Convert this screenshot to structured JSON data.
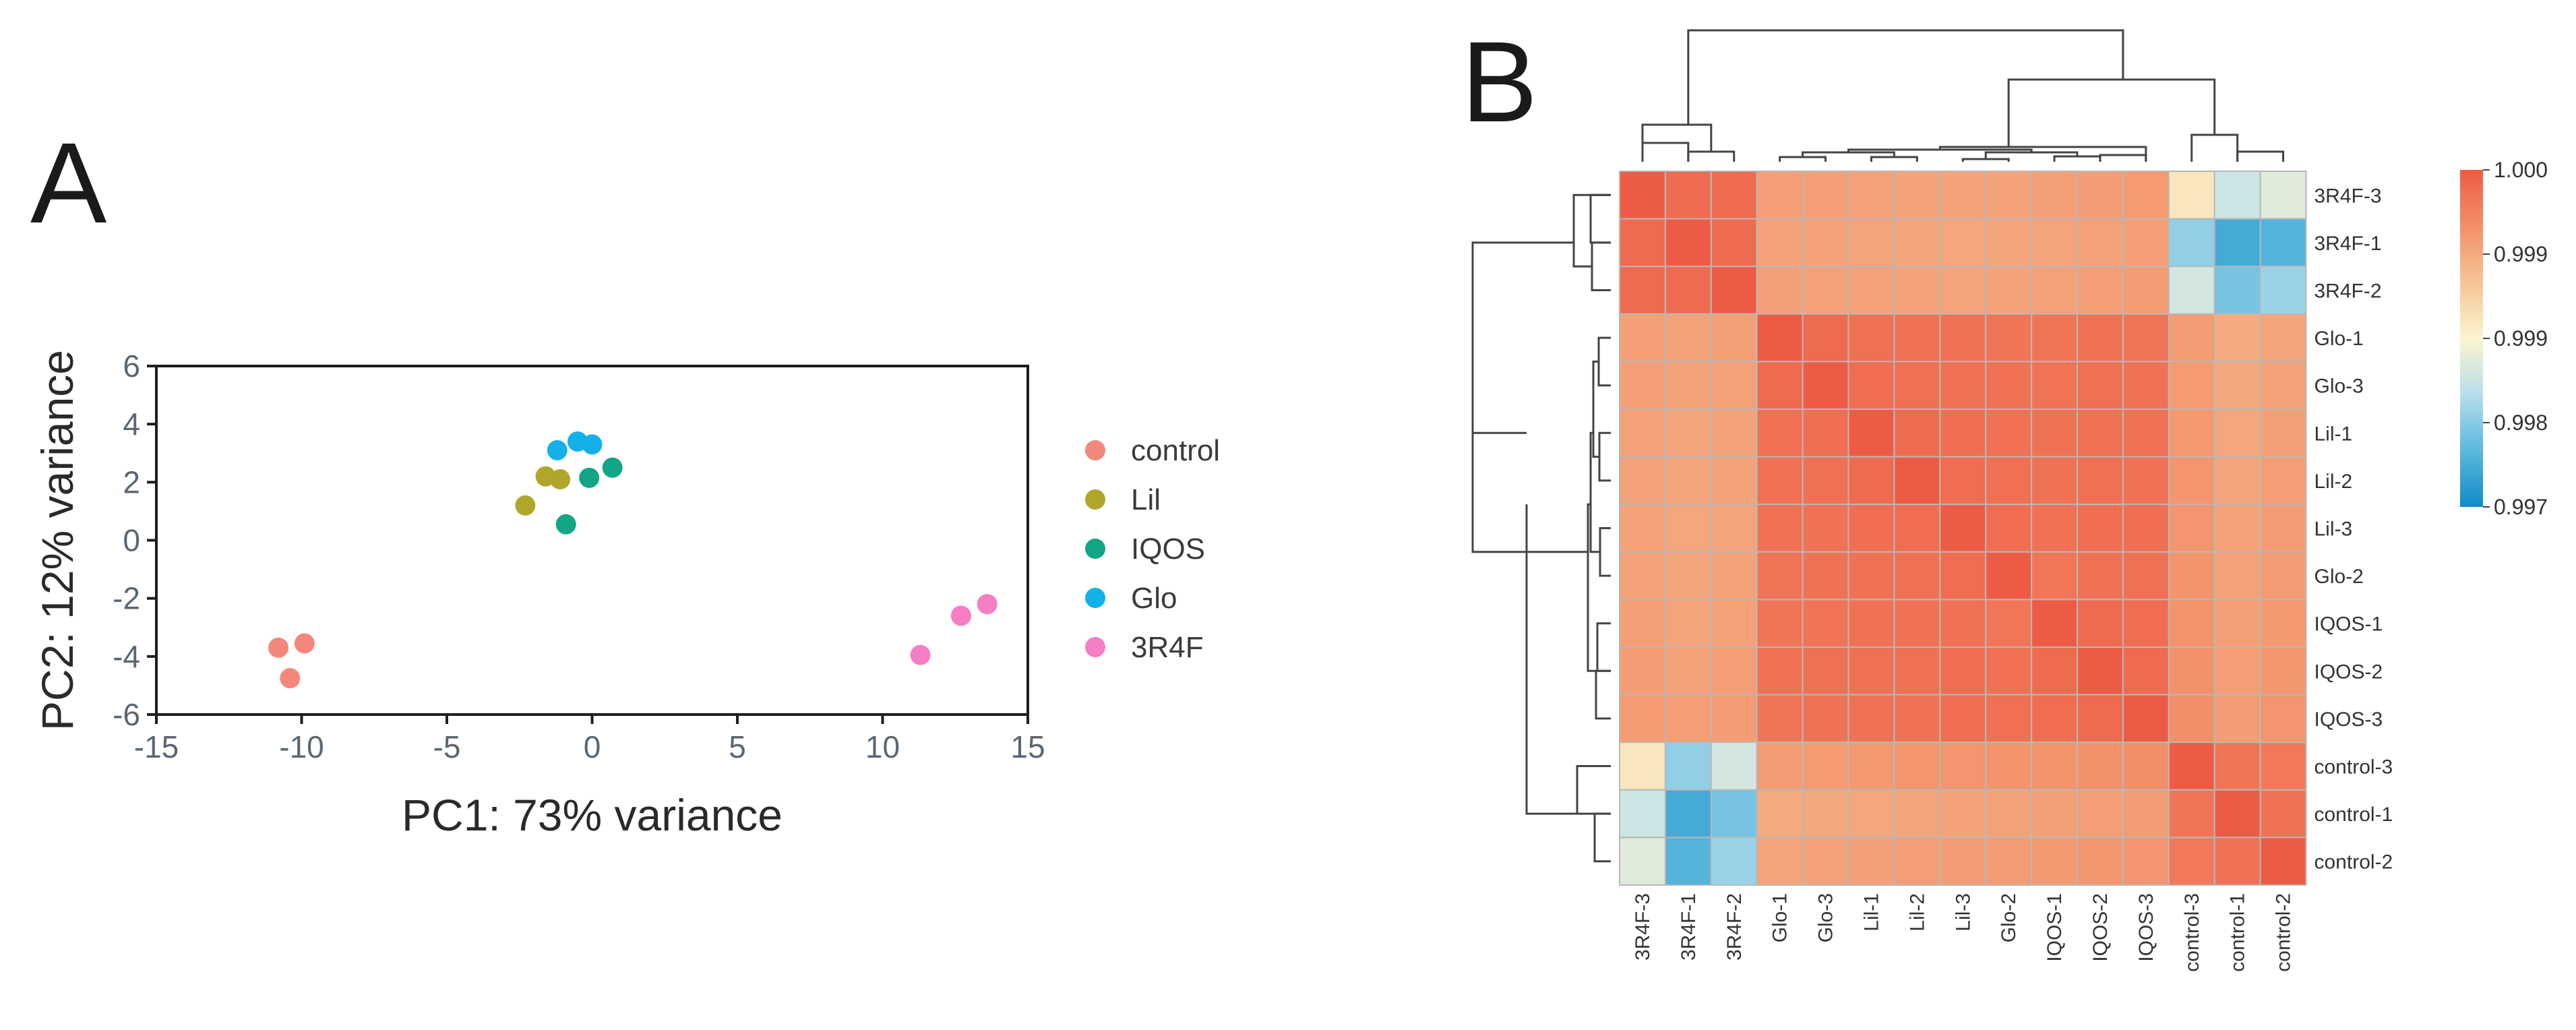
{
  "panel_labels": {
    "a": "A",
    "b": "B"
  },
  "chart_data": [
    {
      "type": "scatter",
      "panel": "A",
      "title": "",
      "xlabel": "PC1: 73% variance",
      "ylabel": "PC2: 12% variance",
      "xlim": [
        -15,
        15
      ],
      "ylim": [
        -6,
        6
      ],
      "xticks": [
        -15,
        -10,
        -5,
        0,
        5,
        10,
        15
      ],
      "yticks": [
        -6,
        -4,
        -2,
        0,
        2,
        4,
        6
      ],
      "grid": false,
      "legend_position": "right",
      "series": [
        {
          "name": "control",
          "color": "#f4877b",
          "points": [
            [
              -10.8,
              -3.7
            ],
            [
              -9.9,
              -3.55
            ],
            [
              -10.4,
              -4.75
            ]
          ]
        },
        {
          "name": "Lil",
          "color": "#b0a72a",
          "points": [
            [
              -2.3,
              1.2
            ],
            [
              -1.6,
              2.2
            ],
            [
              -1.1,
              2.1
            ]
          ]
        },
        {
          "name": "IQOS",
          "color": "#12a586",
          "points": [
            [
              -0.9,
              0.55
            ],
            [
              -0.1,
              2.15
            ],
            [
              0.7,
              2.5
            ]
          ]
        },
        {
          "name": "Glo",
          "color": "#14b0e8",
          "points": [
            [
              -1.2,
              3.1
            ],
            [
              -0.5,
              3.4
            ],
            [
              0.0,
              3.3
            ]
          ]
        },
        {
          "name": "3R4F",
          "color": "#f57ec4",
          "points": [
            [
              11.3,
              -3.95
            ],
            [
              12.7,
              -2.6
            ],
            [
              13.6,
              -2.2
            ]
          ]
        }
      ]
    },
    {
      "type": "heatmap",
      "panel": "B",
      "title": "",
      "row_labels": [
        "3R4F-3",
        "3R4F-1",
        "3R4F-2",
        "Glo-1",
        "Glo-3",
        "Lil-1",
        "Lil-2",
        "Lil-3",
        "Glo-2",
        "IQOS-1",
        "IQOS-2",
        "IQOS-3",
        "control-3",
        "control-1",
        "control-2"
      ],
      "col_labels": [
        "3R4F-3",
        "3R4F-1",
        "3R4F-2",
        "Glo-1",
        "Glo-3",
        "Lil-1",
        "Lil-2",
        "Lil-3",
        "Glo-2",
        "IQOS-1",
        "IQOS-2",
        "IQOS-3",
        "control-3",
        "control-1",
        "control-2"
      ],
      "values": [
        [
          1.0,
          0.99985,
          0.99985,
          0.99935,
          0.99935,
          0.99933,
          0.99932,
          0.99931,
          0.99932,
          0.99934,
          0.99937,
          0.99939,
          0.99865,
          0.99815,
          0.9983
        ],
        [
          0.99985,
          1.0,
          0.99985,
          0.99932,
          0.99931,
          0.9993,
          0.99929,
          0.99928,
          0.99929,
          0.9993,
          0.99933,
          0.99935,
          0.9978,
          0.99735,
          0.99745
        ],
        [
          0.99985,
          0.99985,
          1.0,
          0.99934,
          0.99933,
          0.99932,
          0.99931,
          0.9993,
          0.99931,
          0.99933,
          0.99936,
          0.99938,
          0.9982,
          0.99765,
          0.99785
        ],
        [
          0.99935,
          0.99932,
          0.99934,
          1.0,
          0.99985,
          0.9998,
          0.99979,
          0.99978,
          0.99976,
          0.99975,
          0.99978,
          0.99976,
          0.99938,
          0.99925,
          0.9993
        ],
        [
          0.99935,
          0.99931,
          0.99933,
          0.99985,
          1.0,
          0.99982,
          0.9998,
          0.99979,
          0.99978,
          0.99977,
          0.9998,
          0.99978,
          0.99939,
          0.99926,
          0.99932
        ],
        [
          0.99933,
          0.9993,
          0.99932,
          0.9998,
          0.99982,
          1.0,
          0.99985,
          0.99982,
          0.99979,
          0.99978,
          0.9998,
          0.99979,
          0.99941,
          0.99928,
          0.99934
        ],
        [
          0.99932,
          0.99929,
          0.99931,
          0.99979,
          0.9998,
          0.99985,
          1.0,
          0.99983,
          0.9998,
          0.99978,
          0.9998,
          0.99979,
          0.99943,
          0.9993,
          0.99936
        ],
        [
          0.99931,
          0.99928,
          0.9993,
          0.99978,
          0.99979,
          0.99982,
          0.99983,
          1.0,
          0.99983,
          0.99979,
          0.99981,
          0.99982,
          0.99944,
          0.99931,
          0.99937
        ],
        [
          0.99932,
          0.99929,
          0.99931,
          0.99976,
          0.99978,
          0.99979,
          0.9998,
          0.99983,
          1.0,
          0.99974,
          0.99979,
          0.9998,
          0.99945,
          0.99933,
          0.99938
        ],
        [
          0.99934,
          0.9993,
          0.99933,
          0.99975,
          0.99977,
          0.99978,
          0.99978,
          0.99979,
          0.99974,
          1.0,
          0.99985,
          0.99983,
          0.99946,
          0.99934,
          0.9994
        ],
        [
          0.99937,
          0.99933,
          0.99936,
          0.99978,
          0.9998,
          0.9998,
          0.9998,
          0.99981,
          0.99979,
          0.99985,
          1.0,
          0.99986,
          0.99948,
          0.99936,
          0.99942
        ],
        [
          0.99939,
          0.99935,
          0.99938,
          0.99976,
          0.99978,
          0.99979,
          0.99979,
          0.99982,
          0.9998,
          0.99983,
          0.99986,
          1.0,
          0.9995,
          0.99938,
          0.99944
        ],
        [
          0.99865,
          0.9978,
          0.9982,
          0.99938,
          0.99939,
          0.99941,
          0.99943,
          0.99944,
          0.99945,
          0.99946,
          0.99948,
          0.9995,
          1.0,
          0.99975,
          0.99972
        ],
        [
          0.99815,
          0.99735,
          0.99765,
          0.99925,
          0.99926,
          0.99928,
          0.9993,
          0.99931,
          0.99933,
          0.99934,
          0.99936,
          0.99938,
          0.99975,
          1.0,
          0.99978
        ],
        [
          0.9983,
          0.99745,
          0.99785,
          0.9993,
          0.99932,
          0.99934,
          0.99936,
          0.99937,
          0.99938,
          0.9994,
          0.99942,
          0.99944,
          0.99972,
          0.99978,
          1.0
        ]
      ],
      "color_scale": {
        "min": 0.997,
        "max": 1.0,
        "stops": [
          "#0f8cc6",
          "#5bb8dd",
          "#b8ddec",
          "#fbf5cf",
          "#f6c496",
          "#f38f68",
          "#ee5b45"
        ],
        "tick_labels": [
          "1.000",
          "0.999",
          "0.999",
          "0.998",
          "0.997"
        ]
      },
      "legend_position": "right"
    }
  ]
}
